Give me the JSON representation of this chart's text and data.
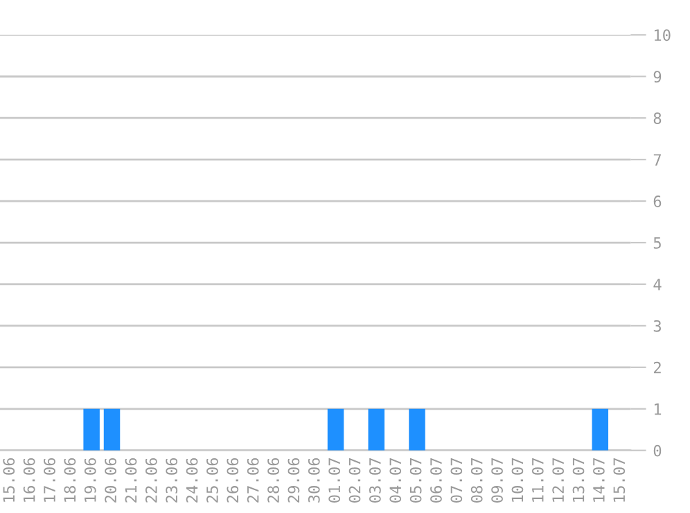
{
  "chart_data": {
    "type": "bar",
    "categories": [
      "15.06",
      "16.06",
      "17.06",
      "18.06",
      "19.06",
      "20.06",
      "21.06",
      "22.06",
      "23.06",
      "24.06",
      "25.06",
      "26.06",
      "27.06",
      "28.06",
      "29.06",
      "30.06",
      "01.07",
      "02.07",
      "03.07",
      "04.07",
      "05.07",
      "06.07",
      "07.07",
      "08.07",
      "09.07",
      "10.07",
      "11.07",
      "12.07",
      "13.07",
      "14.07",
      "15.07"
    ],
    "values": [
      0,
      0,
      0,
      0,
      1,
      1,
      0,
      0,
      0,
      0,
      0,
      0,
      0,
      0,
      0,
      0,
      1,
      0,
      1,
      0,
      1,
      0,
      0,
      0,
      0,
      0,
      0,
      0,
      0,
      1,
      0
    ],
    "color": "#1e90ff",
    "ylim": [
      0,
      10
    ],
    "yticks": [
      0,
      1,
      2,
      3,
      4,
      5,
      6,
      7,
      8,
      9,
      10
    ],
    "grid": "y"
  }
}
